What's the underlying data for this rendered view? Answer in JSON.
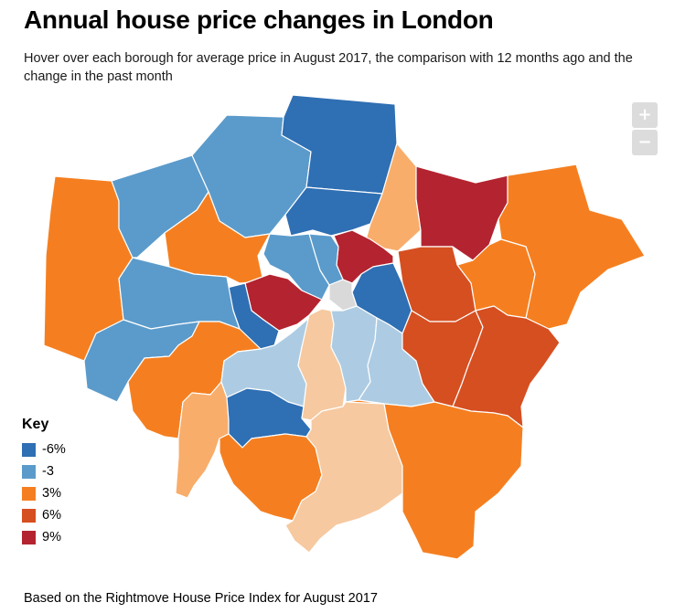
{
  "title": "Annual house price changes in London",
  "subtitle": "Hover over each borough for average price in August 2017, the comparison with 12 months ago and the change in the past month",
  "zoom": {
    "in_label": "+",
    "out_label": "−"
  },
  "legend": {
    "title": "Key",
    "items": [
      {
        "label": "-6%",
        "color": "#2f6fb3"
      },
      {
        "label": "-3",
        "color": "#5b9bcb"
      },
      {
        "label": "3%",
        "color": "#f57f20"
      },
      {
        "label": "6%",
        "color": "#d64f21"
      },
      {
        "label": "9%",
        "color": "#b32430"
      }
    ],
    "light_colors": {
      "light_blue": "#adcce3",
      "light_orange": "#f8ad6b",
      "peach": "#f6c9a0"
    }
  },
  "footer": "Based on the Rightmove House Price Index for August 2017"
}
